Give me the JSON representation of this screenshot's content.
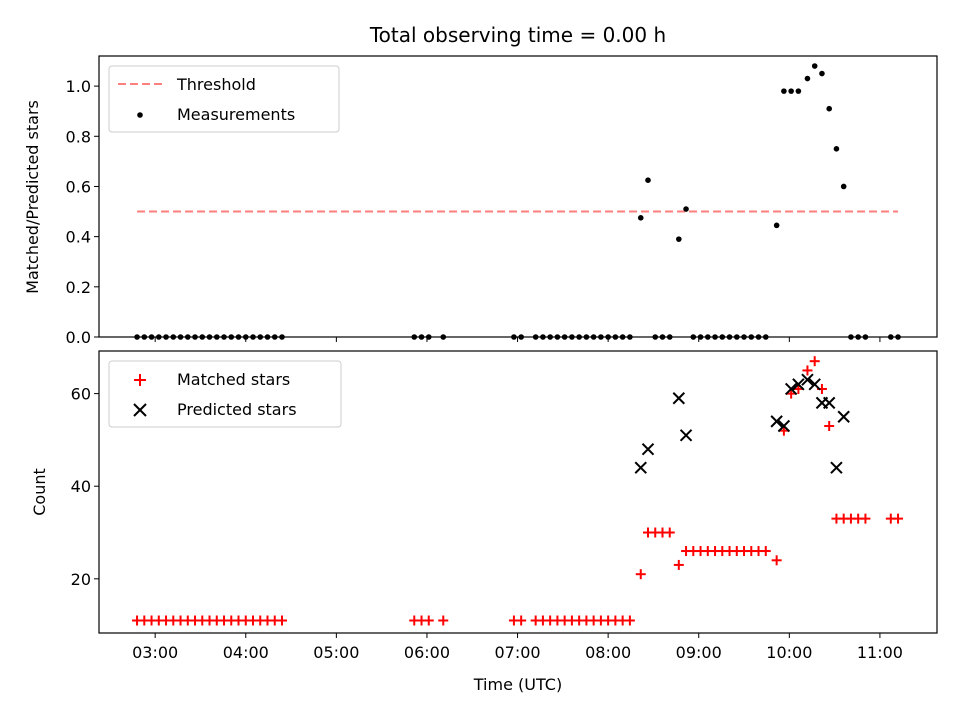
{
  "chart_data": {
    "title": "Total observing time = 0.00 h",
    "xlabel": "Time (UTC)",
    "x_unit": "hours UTC",
    "xlim": [
      2.38,
      11.63
    ],
    "x_ticks": [
      {
        "value": 3,
        "label": "03:00"
      },
      {
        "value": 4,
        "label": "04:00"
      },
      {
        "value": 5,
        "label": "05:00"
      },
      {
        "value": 6,
        "label": "06:00"
      },
      {
        "value": 7,
        "label": "07:00"
      },
      {
        "value": 8,
        "label": "08:00"
      },
      {
        "value": 9,
        "label": "09:00"
      },
      {
        "value": 10,
        "label": "10:00"
      },
      {
        "value": 11,
        "label": "11:00"
      }
    ],
    "panels": [
      {
        "type": "scatter",
        "ylabel": "Matched/Predicted stars",
        "ylim": [
          0,
          1.12
        ],
        "y_ticks": [
          {
            "value": 0,
            "label": "0.0"
          },
          {
            "value": 0.2,
            "label": "0.2"
          },
          {
            "value": 0.4,
            "label": "0.4"
          },
          {
            "value": 0.6,
            "label": "0.6"
          },
          {
            "value": 0.8,
            "label": "0.8"
          },
          {
            "value": 1.0,
            "label": "1.0"
          }
        ],
        "legend_position": "top-left",
        "series": [
          {
            "name": "Threshold",
            "kind": "line",
            "style": "dashed",
            "color": "#ff7f7f",
            "x": [
              2.8,
              11.2
            ],
            "y": [
              0.5,
              0.5
            ]
          },
          {
            "name": "Measurements",
            "kind": "dot",
            "color": "#000000",
            "x": [
              2.8,
              2.88,
              2.96,
              3.04,
              3.12,
              3.2,
              3.28,
              3.36,
              3.44,
              3.52,
              3.6,
              3.68,
              3.76,
              3.84,
              3.92,
              4.0,
              4.08,
              4.16,
              4.24,
              4.32,
              4.4,
              5.86,
              5.94,
              6.02,
              6.18,
              6.96,
              7.04,
              7.2,
              7.28,
              7.36,
              7.44,
              7.52,
              7.6,
              7.68,
              7.76,
              7.84,
              7.92,
              8.0,
              8.08,
              8.16,
              8.24,
              8.36,
              8.44,
              8.52,
              8.6,
              8.68,
              8.78,
              8.86,
              8.94,
              9.02,
              9.1,
              9.18,
              9.26,
              9.34,
              9.42,
              9.5,
              9.58,
              9.66,
              9.74,
              9.86,
              9.94,
              10.02,
              10.1,
              10.2,
              10.28,
              10.36,
              10.44,
              10.52,
              10.6,
              10.68,
              10.76,
              10.84,
              11.12,
              11.2
            ],
            "y": [
              0,
              0,
              0,
              0,
              0,
              0,
              0,
              0,
              0,
              0,
              0,
              0,
              0,
              0,
              0,
              0,
              0,
              0,
              0,
              0,
              0,
              0,
              0,
              0,
              0,
              0,
              0,
              0,
              0,
              0,
              0,
              0,
              0,
              0,
              0,
              0,
              0,
              0,
              0,
              0,
              0,
              0.475,
              0.625,
              0,
              0,
              0,
              0.39,
              0.51,
              0,
              0,
              0,
              0,
              0,
              0,
              0,
              0,
              0,
              0,
              0,
              0.445,
              0.98,
              0.98,
              0.98,
              1.03,
              1.08,
              1.05,
              0.91,
              0.75,
              0.6,
              0,
              0,
              0,
              0,
              0
            ]
          }
        ]
      },
      {
        "type": "scatter",
        "ylabel": "Count",
        "ylim": [
          8.3,
          69.2
        ],
        "y_ticks": [
          {
            "value": 20,
            "label": "20"
          },
          {
            "value": 40,
            "label": "40"
          },
          {
            "value": 60,
            "label": "60"
          }
        ],
        "legend_position": "top-left",
        "series": [
          {
            "name": "Matched stars",
            "kind": "plus",
            "color": "#ff0000",
            "x": [
              2.8,
              2.88,
              2.96,
              3.04,
              3.12,
              3.2,
              3.28,
              3.36,
              3.44,
              3.52,
              3.6,
              3.68,
              3.76,
              3.84,
              3.92,
              4.0,
              4.08,
              4.16,
              4.24,
              4.32,
              4.4,
              5.86,
              5.94,
              6.02,
              6.18,
              6.96,
              7.04,
              7.2,
              7.28,
              7.36,
              7.44,
              7.52,
              7.6,
              7.68,
              7.76,
              7.84,
              7.92,
              8.0,
              8.08,
              8.16,
              8.24,
              8.36,
              8.44,
              8.52,
              8.6,
              8.68,
              8.78,
              8.86,
              8.94,
              9.02,
              9.1,
              9.18,
              9.26,
              9.34,
              9.42,
              9.5,
              9.58,
              9.66,
              9.74,
              9.86,
              9.94,
              10.02,
              10.1,
              10.2,
              10.28,
              10.36,
              10.44,
              10.52,
              10.6,
              10.68,
              10.76,
              10.84,
              11.12,
              11.2
            ],
            "y": [
              11,
              11,
              11,
              11,
              11,
              11,
              11,
              11,
              11,
              11,
              11,
              11,
              11,
              11,
              11,
              11,
              11,
              11,
              11,
              11,
              11,
              11,
              11,
              11,
              11,
              11,
              11,
              11,
              11,
              11,
              11,
              11,
              11,
              11,
              11,
              11,
              11,
              11,
              11,
              11,
              11,
              21,
              30,
              30,
              30,
              30,
              23,
              26,
              26,
              26,
              26,
              26,
              26,
              26,
              26,
              26,
              26,
              26,
              26,
              24,
              52,
              60,
              61,
              65,
              67,
              61,
              53,
              33,
              33,
              33,
              33,
              33,
              33,
              33
            ]
          },
          {
            "name": "Predicted stars",
            "kind": "x",
            "color": "#000000",
            "x": [
              8.36,
              8.44,
              8.78,
              8.86,
              9.86,
              9.94,
              10.02,
              10.1,
              10.2,
              10.28,
              10.36,
              10.44,
              10.52,
              10.6
            ],
            "y": [
              44,
              48,
              59,
              51,
              54,
              53,
              61,
              62,
              63,
              62,
              58,
              58,
              44,
              55
            ]
          }
        ]
      }
    ]
  }
}
